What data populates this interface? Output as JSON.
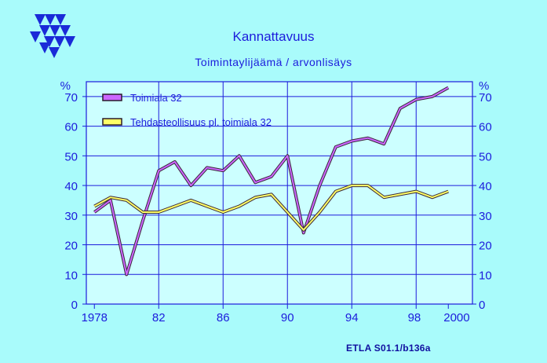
{
  "title": "Kannattavuus",
  "subtitle": "Toimintaylijäämä / arvonlisäys",
  "source": "ETLA S01.1/b136a",
  "colors": {
    "background": "#a9fbfb",
    "plot_background": "#ccffff",
    "axis": "#1c1cdc",
    "series_1": "#cc66ff",
    "series_2": "#ffff66"
  },
  "logo_icon": "etla-triangles-logo",
  "chart_data": {
    "type": "line",
    "title": "Kannattavuus",
    "subtitle": "Toimintaylijäämä / arvonlisäys",
    "unit_left": "%",
    "unit_right": "%",
    "xlim": [
      1977.5,
      2001.5
    ],
    "ylim": [
      0,
      75
    ],
    "yticks": [
      0,
      10,
      20,
      30,
      40,
      50,
      60,
      70
    ],
    "xticks": [
      {
        "value": 1978,
        "label": "1978"
      },
      {
        "value": 1982,
        "label": "82"
      },
      {
        "value": 1986,
        "label": "86"
      },
      {
        "value": 1990,
        "label": "90"
      },
      {
        "value": 1994,
        "label": "94"
      },
      {
        "value": 1998,
        "label": "98"
      },
      {
        "value": 2000,
        "label": "2000"
      }
    ],
    "grid": true,
    "legend_position": "top-left",
    "x": [
      1978,
      1979,
      1980,
      1981,
      1982,
      1983,
      1984,
      1985,
      1986,
      1987,
      1988,
      1989,
      1990,
      1991,
      1992,
      1993,
      1994,
      1995,
      1996,
      1997,
      1998,
      1999,
      2000
    ],
    "series": [
      {
        "name": "Toimiala 32",
        "color": "#cc66ff",
        "values": [
          31,
          35,
          10,
          28,
          45,
          48,
          40,
          46,
          45,
          50,
          41,
          43,
          50,
          24,
          40,
          53,
          55,
          56,
          54,
          66,
          69,
          70,
          73
        ]
      },
      {
        "name": "Tehdasteollisuus pl. toimiala 32",
        "color": "#ffff66",
        "values": [
          33,
          36,
          35,
          31,
          31,
          33,
          35,
          33,
          31,
          33,
          36,
          37,
          31,
          25,
          31,
          38,
          40,
          40,
          36,
          37,
          38,
          36,
          38
        ]
      }
    ]
  }
}
